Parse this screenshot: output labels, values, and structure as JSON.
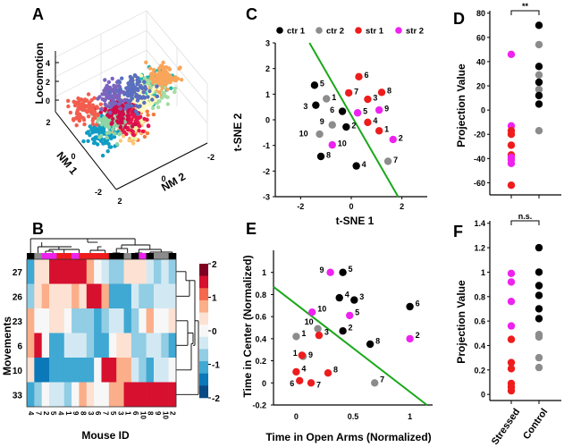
{
  "colors": {
    "ctr1": "#000000",
    "ctr2": "#8c8c8c",
    "str1": "#ee1c1c",
    "str2": "#ee22ee",
    "fit_line": "#1aa81a"
  },
  "panel_labels": [
    "A",
    "B",
    "C",
    "D",
    "E",
    "F"
  ],
  "chart_data": [
    {
      "panel": "A",
      "type": "scatter",
      "title": "",
      "projection": "3d",
      "xlabel": "NM 1",
      "ylabel": "NM 2",
      "zlabel": "Locomotion",
      "x_ticks": [
        "2",
        "0",
        "-2"
      ],
      "y_ticks": [
        "2",
        "0",
        "-2"
      ],
      "z_ticks": [
        "0",
        "2",
        "4"
      ],
      "zlim": [
        -1,
        5
      ],
      "clusters": [
        {
          "color": "#f5793a",
          "x": -1.6,
          "y": 1.0,
          "z": 4.0
        },
        {
          "color": "#fdc676",
          "x": -1.0,
          "y": 0.8,
          "z": 2.5
        },
        {
          "color": "#eef5a8",
          "x": -0.4,
          "y": 0.5,
          "z": 1.6
        },
        {
          "color": "#e8164f",
          "x": -0.2,
          "y": 0.2,
          "z": 0.6
        },
        {
          "color": "#1fb8ae",
          "x": 0.0,
          "y": -1.0,
          "z": 2.2
        },
        {
          "color": "#a4dca4",
          "x": 0.4,
          "y": -1.3,
          "z": 0.8
        },
        {
          "color": "#f9a55a",
          "x": 0.7,
          "y": -1.8,
          "z": 0.8
        },
        {
          "color": "#fffcbc",
          "x": 0.6,
          "y": -0.8,
          "z": 0.2
        },
        {
          "color": "#0f9cc4",
          "x": 0.2,
          "y": 1.1,
          "z": -0.3
        },
        {
          "color": "#8fd6a4",
          "x": 0.5,
          "y": 0.5,
          "z": -0.3
        },
        {
          "color": "#cf0d4b",
          "x": 0.8,
          "y": 0.0,
          "z": -0.5
        },
        {
          "color": "#f25d4e",
          "x": 1.5,
          "y": 1.1,
          "z": -0.5
        },
        {
          "color": "#7a64bd",
          "x": 1.5,
          "y": -0.2,
          "z": -0.5
        },
        {
          "color": "#5a6fbf",
          "x": 1.2,
          "y": -1.0,
          "z": -0.5
        }
      ]
    },
    {
      "panel": "B",
      "type": "heatmap",
      "xlabel": "Mouse ID",
      "ylabel": "Movements",
      "rows": [
        "27",
        "26",
        "23",
        "6",
        "10",
        "33"
      ],
      "columns": [
        "4",
        "7",
        "2",
        "5",
        "4",
        "1",
        "9",
        "8",
        "3",
        "6",
        "7",
        "5",
        "3",
        "1",
        "6",
        "10",
        "8",
        "9",
        "10",
        "2"
      ],
      "column_groups": [
        "ctr1",
        "ctr2",
        "str2",
        "str2",
        "str1",
        "str1",
        "str2",
        "str1",
        "str1",
        "str1",
        "str1",
        "ctr1",
        "ctr1",
        "ctr2",
        "ctr1",
        "str2",
        "ctr1",
        "ctr2",
        "ctr2",
        "ctr1"
      ],
      "values": [
        [
          -1.25,
          0.25,
          0.25,
          1.5,
          1.5,
          1.75,
          1.5,
          1.5,
          0.75,
          0,
          -0.25,
          -0.75,
          -0.75,
          0.25,
          0.25,
          0.25,
          -0.25,
          -0.75,
          -0.25,
          -0.75
        ],
        [
          -0.75,
          0.25,
          1.0,
          0.25,
          0.25,
          0.25,
          0.75,
          0.25,
          1.5,
          1.75,
          0.75,
          -1.25,
          -1.25,
          -1.25,
          -0.25,
          -0.75,
          -0.75,
          -0.25,
          -0.25,
          -0.25
        ],
        [
          1.0,
          0,
          0,
          0.25,
          0.25,
          0,
          -0.75,
          -0.75,
          -0.75,
          -1.25,
          -0.75,
          -0.25,
          -0.25,
          -1.25,
          -0.75,
          0,
          0.75,
          0,
          0,
          0.25
        ],
        [
          1.0,
          1.5,
          0,
          -1.25,
          -1.25,
          -0.25,
          -0.25,
          -0.25,
          -0.75,
          -1.25,
          -1.25,
          0,
          0.25,
          0.25,
          -0.75,
          -0.75,
          -0.25,
          -0.25,
          -0.75,
          -1.25
        ],
        [
          0.25,
          -1.5,
          -1.75,
          -1.25,
          -1.25,
          -1.25,
          -1.25,
          -1.25,
          -1.25,
          0,
          1.5,
          1.75,
          1.0,
          0.75,
          -0.25,
          -0.75,
          -1.25,
          -0.25,
          -0.25,
          0
        ],
        [
          -1.25,
          -0.75,
          0,
          -0.25,
          -0.25,
          -0.75,
          0,
          0.75,
          0.25,
          0,
          0,
          0.75,
          1.0,
          1.5,
          1.75,
          1.75,
          1.75,
          1.75,
          1.75,
          1.75
        ]
      ],
      "colorbar": {
        "range": [
          -2,
          2
        ],
        "ticks": [
          "2",
          "1",
          "0",
          "-1",
          "-2"
        ],
        "steps": [
          "#7f0022",
          "#d6102e",
          "#f4694d",
          "#fbae8a",
          "#fde1d2",
          "#f7f7f7",
          "#d2e9f3",
          "#91cde4",
          "#3fa8d3",
          "#0b78b9",
          "#0a4a84"
        ]
      }
    },
    {
      "panel": "C",
      "type": "scatter",
      "xlabel": "t-SNE 1",
      "ylabel": "t-SNE 2",
      "xlim": [
        -3,
        3
      ],
      "ylim": [
        -3,
        3
      ],
      "x_ticks": [
        "-2",
        "0",
        "2"
      ],
      "y_ticks": [
        "3",
        "2",
        "1",
        "0",
        "-1",
        "-2",
        "-3"
      ],
      "legend": [
        {
          "label": "ctr 1",
          "group": "ctr1"
        },
        {
          "label": "ctr 2",
          "group": "ctr2"
        },
        {
          "label": "str 1",
          "group": "str1"
        },
        {
          "label": "str 2",
          "group": "str2"
        }
      ],
      "legend_position": "top",
      "separator_line": {
        "x1": -1.65,
        "y1": 3.0,
        "x2": 1.85,
        "y2": -3.0
      },
      "points": [
        {
          "id": "5",
          "group": "ctr1",
          "x": -1.45,
          "y": 1.35
        },
        {
          "id": "3",
          "group": "ctr1",
          "x": -1.4,
          "y": 0.57
        },
        {
          "id": "6",
          "group": "ctr1",
          "x": -0.35,
          "y": 0.33
        },
        {
          "id": "2",
          "group": "ctr1",
          "x": -0.2,
          "y": -0.28
        },
        {
          "id": "8",
          "group": "ctr1",
          "x": -1.2,
          "y": -1.43
        },
        {
          "id": "4",
          "group": "ctr1",
          "x": 0.2,
          "y": -1.8
        },
        {
          "id": "1",
          "group": "ctr2",
          "x": -0.98,
          "y": 0.82
        },
        {
          "id": "9",
          "group": "ctr2",
          "x": -0.75,
          "y": -0.2
        },
        {
          "id": "10",
          "group": "ctr2",
          "x": -1.25,
          "y": -0.56
        },
        {
          "id": "7",
          "group": "ctr2",
          "x": 1.45,
          "y": -1.62
        },
        {
          "id": "6",
          "group": "str1",
          "x": 0.3,
          "y": 1.68
        },
        {
          "id": "7",
          "group": "str1",
          "x": -0.1,
          "y": 1.05
        },
        {
          "id": "3",
          "group": "str1",
          "x": 0.65,
          "y": 0.8
        },
        {
          "id": "8",
          "group": "str1",
          "x": 1.2,
          "y": 1.07
        },
        {
          "id": "4",
          "group": "str1",
          "x": 0.65,
          "y": -0.1
        },
        {
          "id": "1",
          "group": "str1",
          "x": 1.1,
          "y": -0.43
        },
        {
          "id": "5",
          "group": "str2",
          "x": 0.25,
          "y": 0.27
        },
        {
          "id": "9",
          "group": "str2",
          "x": 1.1,
          "y": 0.38
        },
        {
          "id": "2",
          "group": "str2",
          "x": 1.65,
          "y": -0.77
        },
        {
          "id": "10",
          "group": "str2",
          "x": -0.75,
          "y": -0.98
        }
      ]
    },
    {
      "panel": "D",
      "type": "scatter",
      "ylabel": "Projection Value",
      "ylim": [
        -70,
        82
      ],
      "y_ticks": [
        "80",
        "60",
        "40",
        "20",
        "0",
        "-20",
        "-40",
        "-60"
      ],
      "categories": [
        "Stressed",
        "Control"
      ],
      "significance": "**",
      "points": [
        {
          "category": "Stressed",
          "group": "str2",
          "y": 46
        },
        {
          "category": "Stressed",
          "group": "str2",
          "y": -13
        },
        {
          "category": "Stressed",
          "group": "str1",
          "y": -17
        },
        {
          "category": "Stressed",
          "group": "str1",
          "y": -20
        },
        {
          "category": "Stressed",
          "group": "str1",
          "y": -29
        },
        {
          "category": "Stressed",
          "group": "str1",
          "y": -37
        },
        {
          "category": "Stressed",
          "group": "str2",
          "y": -39
        },
        {
          "category": "Stressed",
          "group": "str2",
          "y": -41
        },
        {
          "category": "Stressed",
          "group": "str2",
          "y": -44
        },
        {
          "category": "Stressed",
          "group": "str1",
          "y": -62
        },
        {
          "category": "Control",
          "group": "ctr1",
          "y": 70
        },
        {
          "category": "Control",
          "group": "ctr2",
          "y": 54
        },
        {
          "category": "Control",
          "group": "ctr1",
          "y": 36
        },
        {
          "category": "Control",
          "group": "ctr2",
          "y": 29
        },
        {
          "category": "Control",
          "group": "ctr1",
          "y": 23
        },
        {
          "category": "Control",
          "group": "ctr2",
          "y": 17
        },
        {
          "category": "Control",
          "group": "ctr1",
          "y": 12
        },
        {
          "category": "Control",
          "group": "ctr1",
          "y": 5
        },
        {
          "category": "Control",
          "group": "ctr2",
          "y": -17
        }
      ]
    },
    {
      "panel": "E",
      "type": "scatter",
      "xlabel": "Time in Open Arms (Normalized)",
      "ylabel": "Time in Center  (Normalized)",
      "xlim": [
        -0.2,
        1.2
      ],
      "ylim": [
        -0.2,
        1.2
      ],
      "x_ticks": [
        "0",
        "0.5",
        "1"
      ],
      "y_ticks": [
        "1",
        "0.8",
        "0.6",
        "0.4",
        "0.2",
        "0",
        "-0.2"
      ],
      "separator_line": {
        "x1": -0.2,
        "y1": 0.87,
        "x2": 1.15,
        "y2": -0.2
      },
      "points": [
        {
          "id": "5",
          "group": "ctr1",
          "x": 0.41,
          "y": 1.0
        },
        {
          "id": "4",
          "group": "ctr1",
          "x": 0.38,
          "y": 0.77
        },
        {
          "id": "3",
          "group": "ctr1",
          "x": 0.51,
          "y": 0.75
        },
        {
          "id": "6",
          "group": "ctr1",
          "x": 1.0,
          "y": 0.69
        },
        {
          "id": "2",
          "group": "ctr1",
          "x": 0.41,
          "y": 0.47
        },
        {
          "id": "8",
          "group": "ctr1",
          "x": 0.65,
          "y": 0.35
        },
        {
          "id": "10",
          "group": "ctr2",
          "x": 0.19,
          "y": 0.49
        },
        {
          "id": "1",
          "group": "ctr2",
          "x": 0.0,
          "y": 0.42
        },
        {
          "id": "9",
          "group": "ctr2",
          "x": 0.06,
          "y": 0.24
        },
        {
          "id": "7",
          "group": "ctr2",
          "x": 0.69,
          "y": 0.0
        },
        {
          "id": "3",
          "group": "str1",
          "x": 0.2,
          "y": 0.43
        },
        {
          "id": "1",
          "group": "str1",
          "x": 0.05,
          "y": 0.25
        },
        {
          "id": "4",
          "group": "str1",
          "x": 0.0,
          "y": 0.1
        },
        {
          "id": "8",
          "group": "str1",
          "x": 0.28,
          "y": 0.09
        },
        {
          "id": "6",
          "group": "str1",
          "x": 0.03,
          "y": 0.02
        },
        {
          "id": "7",
          "group": "str1",
          "x": 0.13,
          "y": 0.0
        },
        {
          "id": "9",
          "group": "str2",
          "x": 0.3,
          "y": 1.0
        },
        {
          "id": "10",
          "group": "str2",
          "x": 0.14,
          "y": 0.64
        },
        {
          "id": "5",
          "group": "str2",
          "x": 0.47,
          "y": 0.61
        },
        {
          "id": "2",
          "group": "str2",
          "x": 1.0,
          "y": 0.4
        }
      ]
    },
    {
      "panel": "F",
      "type": "scatter",
      "ylabel": "Projection Value",
      "ylim": [
        -0.05,
        1.42
      ],
      "y_ticks": [
        "1.4",
        "1.2",
        "1",
        "0.8",
        "0.6",
        "0.4",
        "0.2",
        "0"
      ],
      "categories": [
        "Stressed",
        "Control"
      ],
      "significance": "n.s.",
      "points": [
        {
          "category": "Stressed",
          "group": "str2",
          "y": 0.99
        },
        {
          "category": "Stressed",
          "group": "str2",
          "y": 0.92
        },
        {
          "category": "Stressed",
          "group": "str2",
          "y": 0.76
        },
        {
          "category": "Stressed",
          "group": "str2",
          "y": 0.56
        },
        {
          "category": "Stressed",
          "group": "str1",
          "y": 0.45
        },
        {
          "category": "Stressed",
          "group": "str1",
          "y": 0.26
        },
        {
          "category": "Stressed",
          "group": "str1",
          "y": 0.21
        },
        {
          "category": "Stressed",
          "group": "str1",
          "y": 0.09
        },
        {
          "category": "Stressed",
          "group": "str1",
          "y": 0.06
        },
        {
          "category": "Stressed",
          "group": "str1",
          "y": 0.03
        },
        {
          "category": "Control",
          "group": "ctr1",
          "y": 1.2
        },
        {
          "category": "Control",
          "group": "ctr1",
          "y": 1.0
        },
        {
          "category": "Control",
          "group": "ctr1",
          "y": 0.89
        },
        {
          "category": "Control",
          "group": "ctr1",
          "y": 0.81
        },
        {
          "category": "Control",
          "group": "ctr1",
          "y": 0.7
        },
        {
          "category": "Control",
          "group": "ctr1",
          "y": 0.62
        },
        {
          "category": "Control",
          "group": "ctr2",
          "y": 0.49
        },
        {
          "category": "Control",
          "group": "ctr2",
          "y": 0.47
        },
        {
          "category": "Control",
          "group": "ctr2",
          "y": 0.3
        },
        {
          "category": "Control",
          "group": "ctr2",
          "y": 0.22
        }
      ]
    }
  ]
}
